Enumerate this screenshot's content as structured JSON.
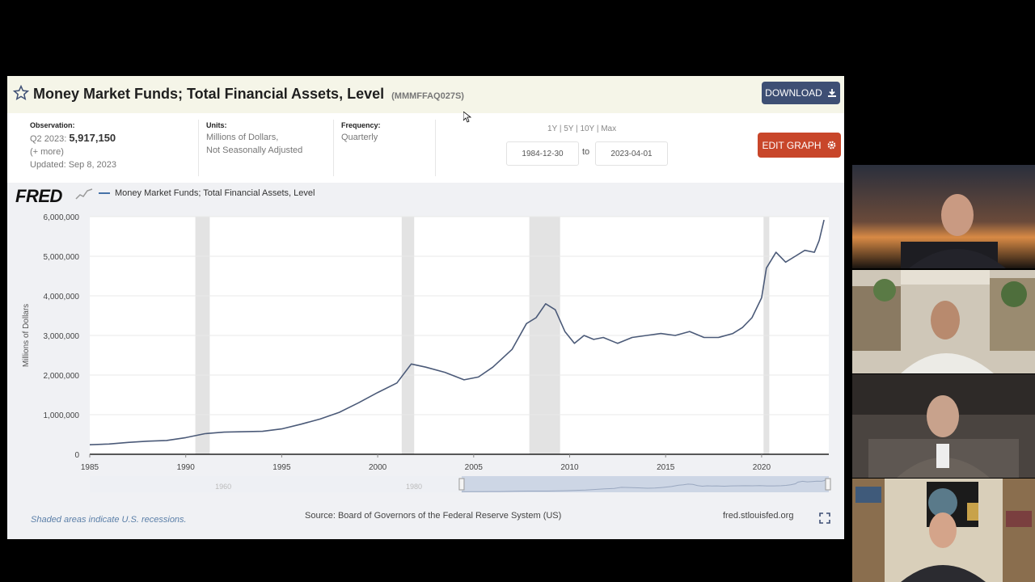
{
  "header": {
    "title": "Money Market Funds; Total Financial Assets, Level",
    "series_id": "(MMMFFAQ027S)",
    "download_label": "DOWNLOAD"
  },
  "info": {
    "observation_label": "Observation:",
    "observation_period": "Q2 2023:",
    "observation_value": "5,917,150",
    "more_link": "(+ more)",
    "updated": "Updated: Sep 8, 2023",
    "units_label": "Units:",
    "units_line1": "Millions of Dollars,",
    "units_line2": "Not Seasonally Adjusted",
    "frequency_label": "Frequency:",
    "frequency_value": "Quarterly",
    "range_buttons": [
      "1Y",
      "5Y",
      "10Y",
      "Max"
    ],
    "date_from": "1984-12-30",
    "to_label": "to",
    "date_to": "2023-04-01",
    "edit_label": "EDIT GRAPH"
  },
  "legend": {
    "logo": "FRED",
    "series_name": "Money Market Funds; Total Financial Assets, Level"
  },
  "footer": {
    "recession_note": "Shaded areas indicate U.S. recessions.",
    "source": "Source: Board of Governors of the Federal Reserve System (US)",
    "url": "fred.stlouisfed.org"
  },
  "navigator": {
    "ticks": [
      "1960",
      "1980"
    ]
  },
  "colors": {
    "line": "#4b5a78",
    "download": "#3e4f74",
    "edit": "#c8462a",
    "recession": "#e3e3e3"
  },
  "chart_data": {
    "type": "line",
    "title": "",
    "xlabel": "",
    "ylabel": "Millions of Dollars",
    "xlim": [
      1985.0,
      2023.5
    ],
    "ylim": [
      0,
      6000000
    ],
    "x_ticks": [
      "1985",
      "1990",
      "1995",
      "2000",
      "2005",
      "2010",
      "2015",
      "2020"
    ],
    "y_ticks": [
      "0",
      "1,000,000",
      "2,000,000",
      "3,000,000",
      "4,000,000",
      "5,000,000",
      "6,000,000"
    ],
    "grid": true,
    "legend_position": "top-left",
    "recessions": [
      [
        1990.5,
        1991.25
      ],
      [
        2001.25,
        2001.9
      ],
      [
        2007.9,
        2009.5
      ],
      [
        2020.1,
        2020.4
      ]
    ],
    "x": [
      1985.0,
      1986.0,
      1987.0,
      1988.0,
      1989.0,
      1990.0,
      1991.0,
      1992.0,
      1993.0,
      1994.0,
      1995.0,
      1996.0,
      1997.0,
      1998.0,
      1999.0,
      2000.0,
      2001.0,
      2001.75,
      2002.5,
      2003.5,
      2004.5,
      2005.25,
      2006.0,
      2007.0,
      2007.75,
      2008.25,
      2008.75,
      2009.25,
      2009.75,
      2010.25,
      2010.75,
      2011.25,
      2011.75,
      2012.5,
      2013.25,
      2014.0,
      2014.75,
      2015.5,
      2016.25,
      2017.0,
      2017.75,
      2018.5,
      2019.0,
      2019.5,
      2020.0,
      2020.25,
      2020.75,
      2021.25,
      2021.75,
      2022.25,
      2022.75,
      2023.0,
      2023.25
    ],
    "y": [
      240000,
      260000,
      300000,
      330000,
      350000,
      420000,
      520000,
      560000,
      570000,
      580000,
      640000,
      760000,
      890000,
      1060000,
      1300000,
      1560000,
      1800000,
      2280000,
      2200000,
      2070000,
      1880000,
      1950000,
      2200000,
      2650000,
      3300000,
      3450000,
      3800000,
      3650000,
      3100000,
      2800000,
      3000000,
      2900000,
      2950000,
      2800000,
      2950000,
      3000000,
      3050000,
      3000000,
      3100000,
      2950000,
      2950000,
      3050000,
      3200000,
      3450000,
      3950000,
      4700000,
      5100000,
      4850000,
      5000000,
      5150000,
      5100000,
      5400000,
      5917150
    ],
    "series": [
      {
        "name": "Money Market Funds; Total Financial Assets, Level"
      }
    ]
  }
}
